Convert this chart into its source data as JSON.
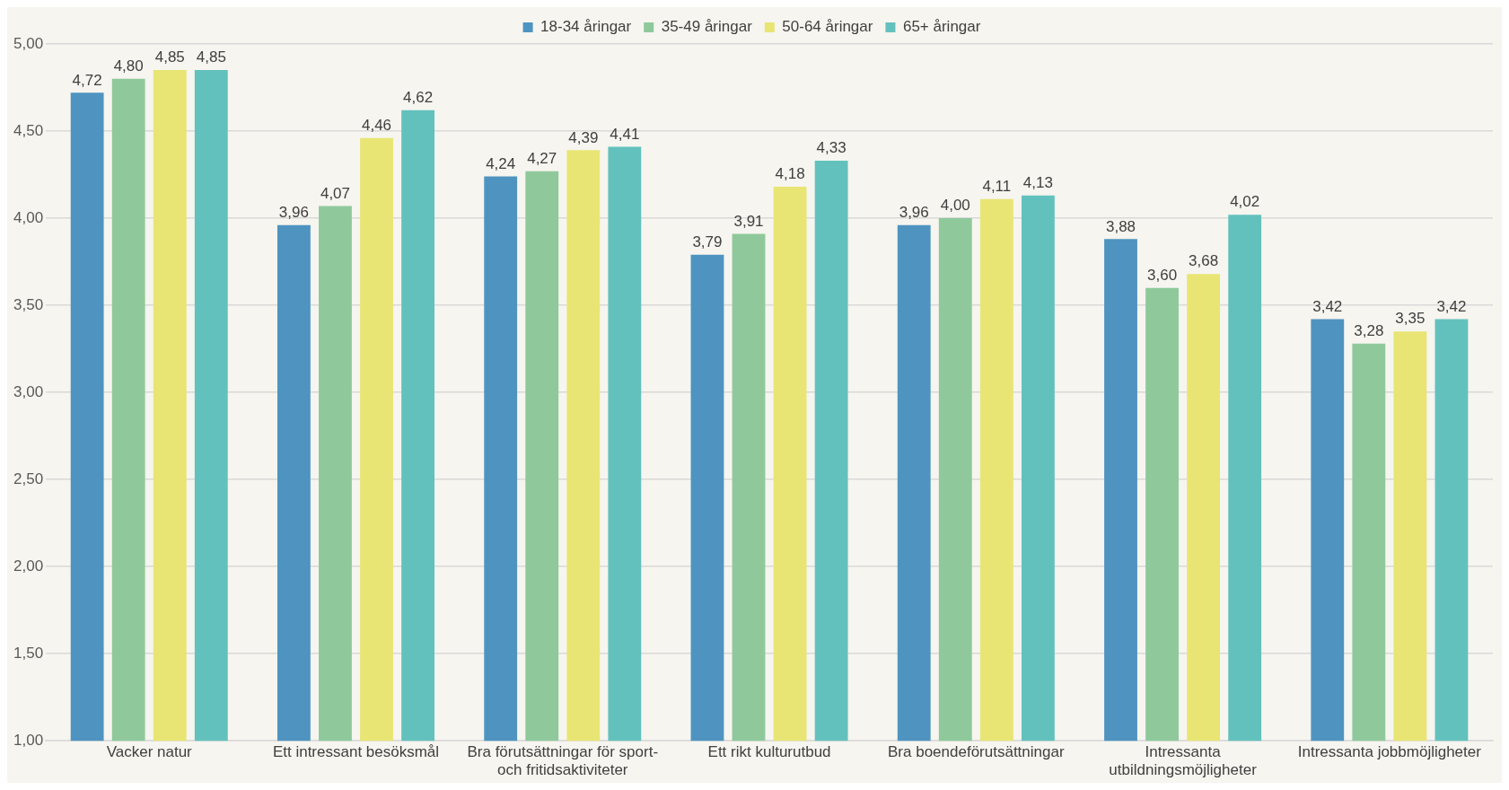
{
  "chart_data": {
    "type": "bar",
    "categories": [
      "Vacker natur",
      "Ett intressant besöksmål",
      "Bra förutsättningar för sport- och fritidsaktiviteter",
      "Ett rikt kulturutbud",
      "Bra boendeförutsättningar",
      "Intressanta utbildningsmöjligheter",
      "Intressanta jobbmöjligheter"
    ],
    "series": [
      {
        "name": "18-34 åringar",
        "color": "#4f94c0",
        "values": [
          4.72,
          3.96,
          4.24,
          3.79,
          3.96,
          3.88,
          3.42
        ],
        "value_labels": [
          "4,72",
          "3,96",
          "4,24",
          "3,79",
          "3,96",
          "3,88",
          "3,42"
        ]
      },
      {
        "name": "35-49 åringar",
        "color": "#8fc99b",
        "values": [
          4.8,
          4.07,
          4.27,
          3.91,
          4.0,
          3.6,
          3.28
        ],
        "value_labels": [
          "4,80",
          "4,07",
          "4,27",
          "3,91",
          "4,00",
          "3,60",
          "3,28"
        ]
      },
      {
        "name": "50-64 åringar",
        "color": "#e8e574",
        "values": [
          4.85,
          4.46,
          4.39,
          4.18,
          4.11,
          3.68,
          3.35
        ],
        "value_labels": [
          "4,85",
          "4,46",
          "4,39",
          "4,18",
          "4,11",
          "3,68",
          "3,35"
        ]
      },
      {
        "name": "65+ åringar",
        "color": "#63c1bd",
        "values": [
          4.85,
          4.62,
          4.41,
          4.33,
          4.13,
          4.02,
          3.42
        ],
        "value_labels": [
          "4,85",
          "4,62",
          "4,41",
          "4,33",
          "4,13",
          "4,02",
          "3,42"
        ]
      }
    ],
    "ylim": [
      1,
      5
    ],
    "yticks": [
      {
        "value": 1,
        "label": "1,00"
      },
      {
        "value": 1.5,
        "label": "1,50"
      },
      {
        "value": 2,
        "label": "2,00"
      },
      {
        "value": 2.5,
        "label": "2,50"
      },
      {
        "value": 3,
        "label": "3,00"
      },
      {
        "value": 3.5,
        "label": "3,50"
      },
      {
        "value": 4,
        "label": "4,00"
      },
      {
        "value": 4.5,
        "label": "4,50"
      },
      {
        "value": 5,
        "label": "5,00"
      }
    ],
    "grid": "y",
    "legend": "top"
  }
}
